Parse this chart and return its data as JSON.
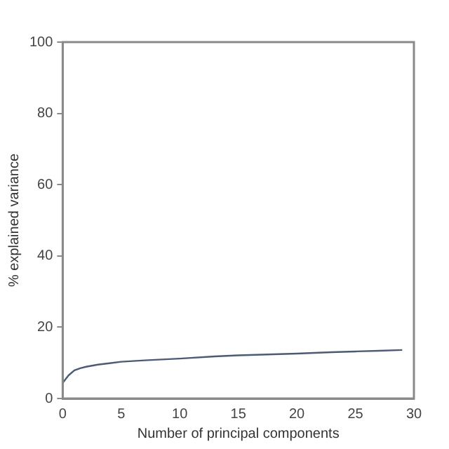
{
  "chart_data": {
    "type": "line",
    "xlabel": "Number of principal components",
    "ylabel": "% explained variance",
    "x": [
      0,
      0.5,
      1,
      1.5,
      2,
      3,
      4,
      5,
      7,
      10,
      13,
      15,
      18,
      20,
      23,
      25,
      27,
      29
    ],
    "series": [
      {
        "color": "#4a5a78",
        "values": [
          4.4,
          6.5,
          7.9,
          8.5,
          8.9,
          9.5,
          9.9,
          10.3,
          10.7,
          11.2,
          11.8,
          12.1,
          12.4,
          12.6,
          13.0,
          13.2,
          13.4,
          13.6
        ]
      }
    ],
    "xlim": [
      0,
      30
    ],
    "xticks": [
      0,
      5,
      10,
      15,
      20,
      25,
      30
    ],
    "ylim": [
      0,
      100
    ],
    "yticks": [
      0,
      20,
      40,
      60,
      80,
      100
    ],
    "grid": false,
    "legend": false,
    "marker": "none",
    "line_style": "solid"
  }
}
